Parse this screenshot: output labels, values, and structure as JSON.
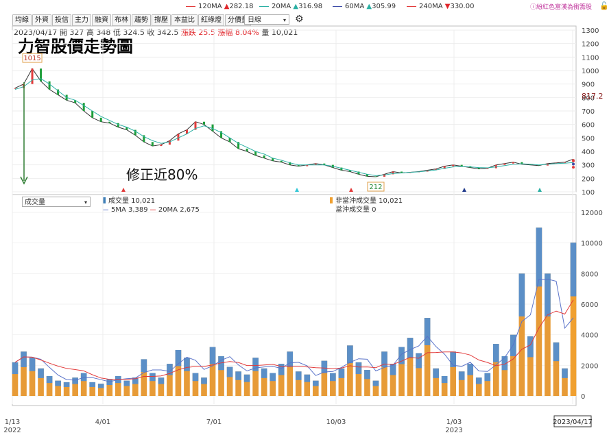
{
  "ma_legend": [
    {
      "label": "120MA",
      "arrow": "▲",
      "value": "282.18",
      "color": "#e23b3b"
    },
    {
      "label": "20MA",
      "arrow": "▲",
      "value": "316.98",
      "color": "#2bb0a4"
    },
    {
      "label": "60MA",
      "arrow": "▲",
      "value": "305.99",
      "color": "#3c4ba8"
    },
    {
      "label": "240MA",
      "arrow": "▼",
      "value": "330.00",
      "color": "#e23b3b"
    }
  ],
  "right_link": "紛紅色富漢為衝籌股",
  "toolbar": [
    "均線",
    "外資",
    "投信",
    "主力",
    "融資",
    "布林",
    "趨勢",
    "撐壓",
    "本益比",
    "紅綠燈",
    "分價量"
  ],
  "period": "日線",
  "info": {
    "date": "2023/04/17",
    "open_label": "開",
    "open": "327",
    "high_label": "高",
    "high": "348",
    "low_label": "低",
    "low": "324.5",
    "close_label": "收",
    "close": "342.5",
    "change_label": "漲跌",
    "change": "25.5",
    "pct_label": "漲幅",
    "pct": "8.04%",
    "vol_label": "量",
    "vol": "10,021"
  },
  "title": "力智股價走勢圖",
  "annotation": "修正近80%",
  "price_axis": {
    "ticks": [
      1300,
      1200,
      1100,
      1000,
      900,
      800,
      700,
      600,
      500,
      400,
      300,
      200,
      100
    ],
    "current": "817.2",
    "max_label": "1015",
    "min_label": "212"
  },
  "volume_panel": {
    "select": "成交量",
    "legend": [
      "成交量 10,021",
      "5MA 3,389",
      "20MA 2,675"
    ],
    "legend2": [
      "非當沖成交量 10,021",
      "當沖成交量 0"
    ],
    "ticks": [
      12000,
      10000,
      8000,
      6000,
      4000,
      2000,
      0
    ]
  },
  "x_axis": [
    {
      "label": "1/13",
      "sub": "2022"
    },
    {
      "label": "4/01",
      "sub": ""
    },
    {
      "label": "7/01",
      "sub": ""
    },
    {
      "label": "10/03",
      "sub": ""
    },
    {
      "label": "1/03",
      "sub": "2023"
    },
    {
      "label": "2023/04/17",
      "sub": ""
    }
  ],
  "chart_data": {
    "type": "line",
    "title": "力智股價走勢圖",
    "xlabel": "",
    "ylabel": "",
    "price_range": [
      100,
      1300
    ],
    "volume_range": [
      0,
      12000
    ],
    "series": [
      {
        "values": [
          870,
          900,
          1015,
          920,
          860,
          820,
          780,
          760,
          700,
          650,
          620,
          610,
          580,
          560,
          520,
          470,
          440,
          450,
          480,
          530,
          560,
          620,
          600,
          550,
          500,
          470,
          420,
          400,
          370,
          350,
          330,
          320,
          300,
          290,
          300,
          310,
          300,
          280,
          260,
          250,
          230,
          215,
          212,
          230,
          250,
          240,
          245,
          250,
          260,
          270,
          290,
          300,
          290,
          280,
          270,
          275,
          300,
          310,
          320,
          305,
          300,
          295,
          310,
          315,
          320,
          342.5
        ]
      },
      {
        "name": "20MA",
        "values": [
          860,
          880,
          930,
          940,
          900,
          850,
          800,
          780,
          740,
          700,
          660,
          630,
          600,
          580,
          550,
          510,
          480,
          460,
          470,
          500,
          530,
          570,
          590,
          570,
          540,
          500,
          460,
          430,
          400,
          380,
          350,
          335,
          315,
          300,
          300,
          300,
          300,
          290,
          275,
          260,
          245,
          230,
          220,
          225,
          235,
          240,
          245,
          248,
          255,
          262,
          275,
          285,
          288,
          285,
          280,
          278,
          285,
          295,
          305,
          308,
          305,
          300,
          305,
          310,
          312,
          316.98
        ]
      },
      {
        "name": "60MA",
        "values": [
          null,
          null,
          null,
          null,
          null,
          null,
          null,
          null,
          null,
          null,
          null,
          null,
          null,
          null,
          null,
          null,
          null,
          null,
          null,
          null,
          null,
          null,
          null,
          null,
          null,
          null,
          null,
          null,
          null,
          null,
          null,
          null,
          null,
          null,
          null,
          null,
          null,
          null,
          null,
          null,
          null,
          null,
          null,
          null,
          null,
          null,
          null,
          null,
          null,
          null,
          null,
          null,
          null,
          null,
          null,
          null,
          null,
          null,
          null,
          null,
          null,
          null,
          null,
          null,
          null,
          305.99
        ]
      },
      {
        "name": "120MA",
        "values": [
          null,
          null,
          null,
          null,
          null,
          null,
          null,
          null,
          null,
          null,
          null,
          null,
          null,
          null,
          null,
          null,
          null,
          null,
          null,
          null,
          null,
          null,
          null,
          null,
          null,
          null,
          null,
          null,
          null,
          null,
          null,
          null,
          null,
          null,
          null,
          null,
          null,
          null,
          null,
          null,
          null,
          null,
          null,
          null,
          null,
          null,
          null,
          null,
          null,
          null,
          null,
          null,
          null,
          null,
          null,
          null,
          null,
          null,
          null,
          null,
          null,
          null,
          null,
          null,
          null,
          282.18
        ]
      },
      {
        "name": "240MA",
        "values": [
          null,
          null,
          null,
          null,
          null,
          null,
          null,
          null,
          null,
          null,
          null,
          null,
          null,
          null,
          null,
          null,
          null,
          null,
          null,
          null,
          null,
          null,
          null,
          null,
          null,
          null,
          null,
          null,
          null,
          null,
          null,
          null,
          null,
          null,
          null,
          null,
          null,
          null,
          null,
          null,
          null,
          null,
          null,
          null,
          null,
          null,
          null,
          null,
          null,
          null,
          null,
          null,
          null,
          null,
          null,
          null,
          null,
          null,
          null,
          null,
          null,
          null,
          null,
          null,
          null,
          330.0
        ]
      },
      {
        "name": "成交量",
        "values": [
          2200,
          2900,
          2500,
          1800,
          1300,
          1000,
          900,
          1200,
          1500,
          900,
          800,
          1100,
          1300,
          1000,
          1200,
          2400,
          1500,
          1200,
          2100,
          3000,
          2500,
          1500,
          1200,
          3200,
          2600,
          1900,
          1600,
          1400,
          2500,
          1800,
          1500,
          2100,
          2900,
          1600,
          1400,
          1000,
          2300,
          1500,
          1800,
          3300,
          2200,
          1700,
          1000,
          2900,
          2100,
          3200,
          3800,
          2800,
          5100,
          1800,
          1300,
          2900,
          1600,
          2100,
          1200,
          1500,
          3400,
          2600,
          4000,
          8000,
          3900,
          11000,
          8000,
          3500,
          1800,
          10021
        ]
      }
    ]
  }
}
